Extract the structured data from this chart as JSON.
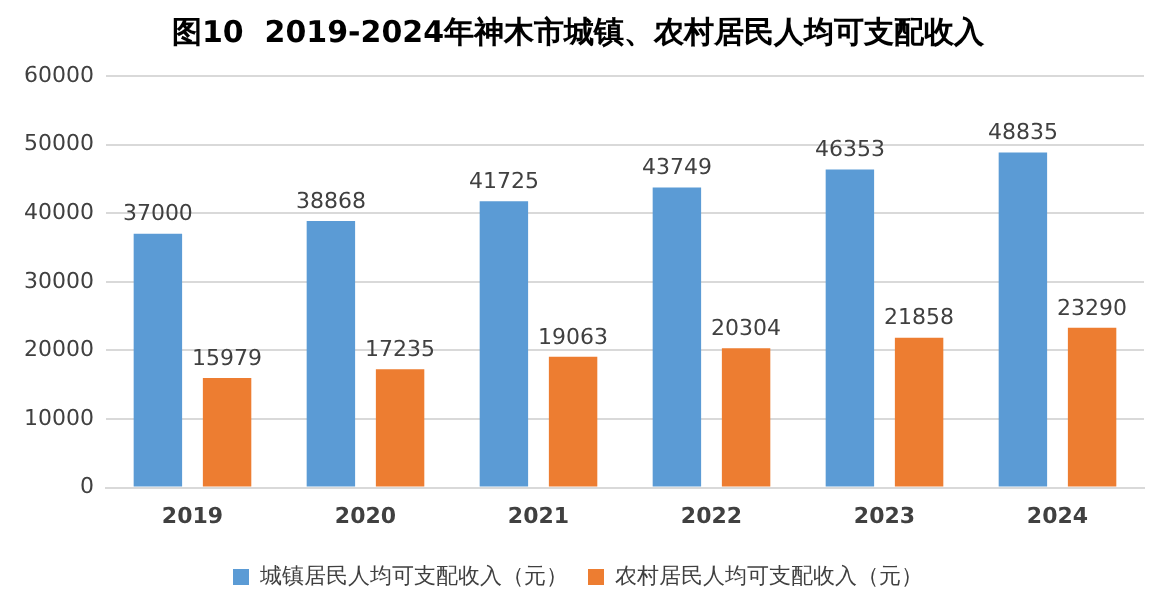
{
  "chart_data": {
    "type": "bar",
    "title": "图10  2019-2024年神木市城镇、农村居民人均可支配收入",
    "categories": [
      "2019",
      "2020",
      "2021",
      "2022",
      "2023",
      "2024"
    ],
    "series": [
      {
        "name": "城镇居民人均可支配收入（元）",
        "color": "#5b9bd5",
        "values": [
          37000,
          38868,
          41725,
          43749,
          46353,
          48835
        ]
      },
      {
        "name": "农村居民人均可支配收入（元）",
        "color": "#ed7d31",
        "values": [
          15979,
          17235,
          19063,
          20304,
          21858,
          23290
        ]
      }
    ],
    "ylim": [
      0,
      60000
    ],
    "yticks": [
      0,
      10000,
      20000,
      30000,
      40000,
      50000,
      60000
    ],
    "grid": "y",
    "legend": "bottom",
    "data_labels": true
  }
}
